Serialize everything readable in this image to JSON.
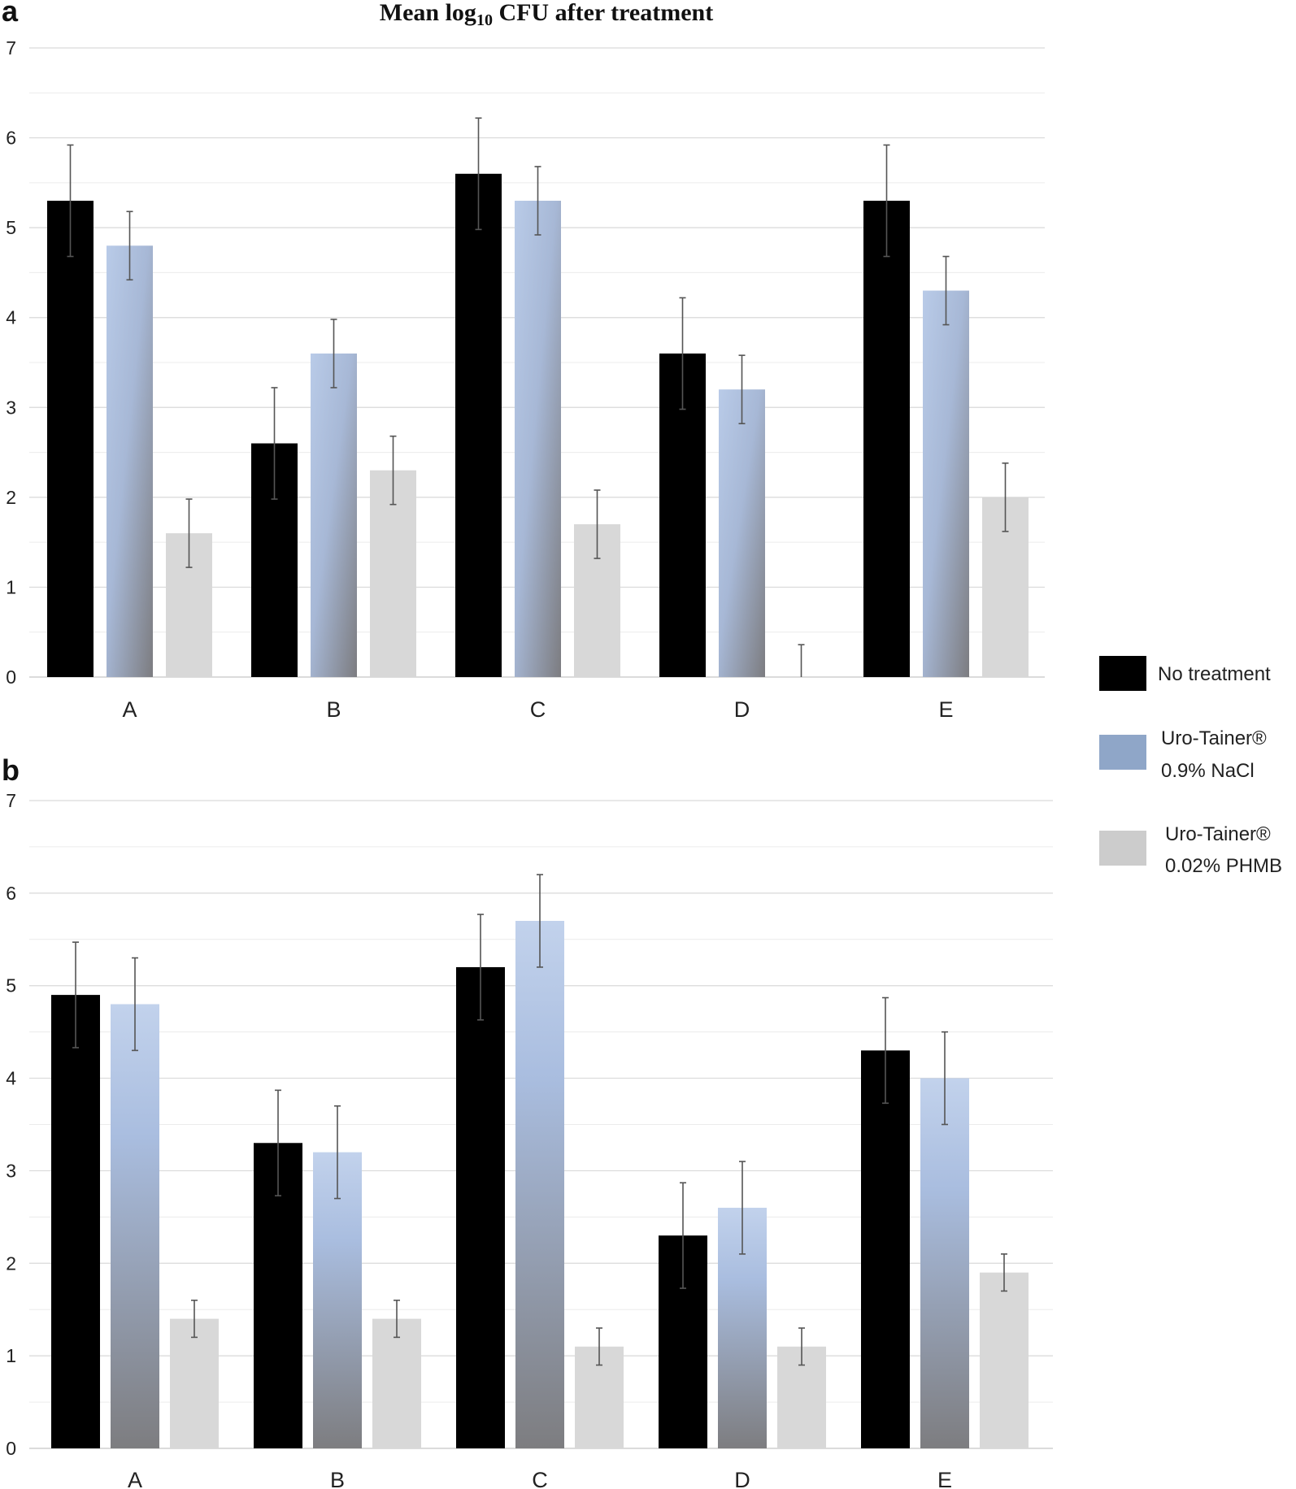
{
  "title": {
    "main": "Mean log",
    "sub": "10",
    "rest": " CFU after treatment"
  },
  "legend": {
    "items": [
      {
        "lines": [
          "No treatment"
        ],
        "color": "#000000"
      },
      {
        "lines": [
          "Uro-Tainer®",
          "0.9% NaCl"
        ],
        "color": "#8fa6c8"
      },
      {
        "lines": [
          "Uro-Tainer®",
          "0.02% PHMB"
        ],
        "color": "#cfcfcf"
      }
    ]
  },
  "chart_data": [
    {
      "panel_label": "a",
      "type": "bar",
      "categories": [
        "A",
        "B",
        "C",
        "D",
        "E"
      ],
      "yticks": [
        "0",
        "1",
        "2",
        "3",
        "4",
        "5",
        "6",
        "7"
      ],
      "ylim": [
        0,
        7
      ],
      "grid": true,
      "series": [
        {
          "name": "No treatment",
          "values": [
            5.3,
            2.6,
            5.6,
            3.6,
            5.3
          ],
          "errors": [
            0.62,
            0.62,
            0.62,
            0.62,
            0.62
          ]
        },
        {
          "name": "Uro-Tainer® 0.9% NaCl",
          "values": [
            4.8,
            3.6,
            5.3,
            3.2,
            4.3
          ],
          "errors": [
            0.38,
            0.38,
            0.38,
            0.38,
            0.38
          ]
        },
        {
          "name": "Uro-Tainer® 0.02% PHMB",
          "values": [
            1.6,
            2.3,
            1.7,
            0.0,
            2.0
          ],
          "errors": [
            0.38,
            0.38,
            0.38,
            0.36,
            0.38
          ]
        }
      ]
    },
    {
      "panel_label": "b",
      "type": "bar",
      "categories": [
        "A",
        "B",
        "C",
        "D",
        "E"
      ],
      "yticks": [
        "0",
        "1",
        "2",
        "3",
        "4",
        "5",
        "6",
        "7"
      ],
      "ylim": [
        0,
        7
      ],
      "grid": true,
      "series": [
        {
          "name": "No treatment",
          "values": [
            4.9,
            3.3,
            5.2,
            2.3,
            4.3
          ],
          "errors": [
            0.57,
            0.57,
            0.57,
            0.57,
            0.57
          ]
        },
        {
          "name": "Uro-Tainer® 0.9% NaCl",
          "values": [
            4.8,
            3.2,
            5.7,
            2.6,
            4.0
          ],
          "errors": [
            0.5,
            0.5,
            0.5,
            0.5,
            0.5
          ]
        },
        {
          "name": "Uro-Tainer® 0.02% PHMB",
          "values": [
            1.4,
            1.4,
            1.1,
            1.1,
            1.9
          ],
          "errors": [
            0.2,
            0.2,
            0.2,
            0.2,
            0.2
          ]
        }
      ]
    }
  ]
}
